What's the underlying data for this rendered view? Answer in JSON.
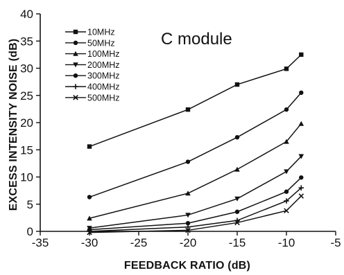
{
  "chart_data": {
    "type": "line",
    "title": "",
    "xlabel": "FEEDBACK RATIO (dB)",
    "ylabel": "EXCESS INTENSITY NOISE (dB)",
    "xlim": [
      -35,
      -5
    ],
    "ylim": [
      0,
      40
    ],
    "xticks": [
      "-35",
      "-30",
      "-25",
      "-20",
      "-15",
      "-10",
      "-5"
    ],
    "yticks": [
      "0",
      "5",
      "10",
      "15",
      "20",
      "25",
      "30",
      "35",
      "40"
    ],
    "grid": false,
    "legend_position": "top-left",
    "annotation": "C module",
    "series": [
      {
        "name": "10MHz",
        "marker": "square",
        "points": [
          [
            -30,
            15.6
          ],
          [
            -20,
            22.4
          ],
          [
            -15,
            27.0
          ],
          [
            -10,
            29.9
          ],
          [
            -8.5,
            32.5
          ]
        ]
      },
      {
        "name": "50MHz",
        "marker": "circle",
        "points": [
          [
            -30,
            6.3
          ],
          [
            -20,
            12.8
          ],
          [
            -15,
            17.3
          ],
          [
            -10,
            22.4
          ],
          [
            -8.5,
            25.5
          ]
        ]
      },
      {
        "name": "100MHz",
        "marker": "triangle-up",
        "points": [
          [
            -30,
            2.4
          ],
          [
            -20,
            7.0
          ],
          [
            -15,
            11.4
          ],
          [
            -10,
            16.5
          ],
          [
            -8.5,
            19.8
          ]
        ]
      },
      {
        "name": "200MHz",
        "marker": "triangle-down",
        "points": [
          [
            -30,
            0.6
          ],
          [
            -20,
            3.0
          ],
          [
            -15,
            6.0
          ],
          [
            -10,
            11.0
          ],
          [
            -8.5,
            13.8
          ]
        ]
      },
      {
        "name": "300MHz",
        "marker": "circle",
        "points": [
          [
            -30,
            0.3
          ],
          [
            -20,
            1.5
          ],
          [
            -15,
            3.6
          ],
          [
            -10,
            7.3
          ],
          [
            -8.5,
            9.9
          ]
        ]
      },
      {
        "name": "400MHz",
        "marker": "plus",
        "points": [
          [
            -30,
            0.0
          ],
          [
            -20,
            0.8
          ],
          [
            -15,
            2.0
          ],
          [
            -10,
            5.6
          ],
          [
            -8.5,
            8.0
          ]
        ]
      },
      {
        "name": "500MHz",
        "marker": "x",
        "points": [
          [
            -30,
            -0.2
          ],
          [
            -20,
            0.2
          ],
          [
            -15,
            1.6
          ],
          [
            -10,
            3.8
          ],
          [
            -8.5,
            6.5
          ]
        ]
      }
    ]
  }
}
